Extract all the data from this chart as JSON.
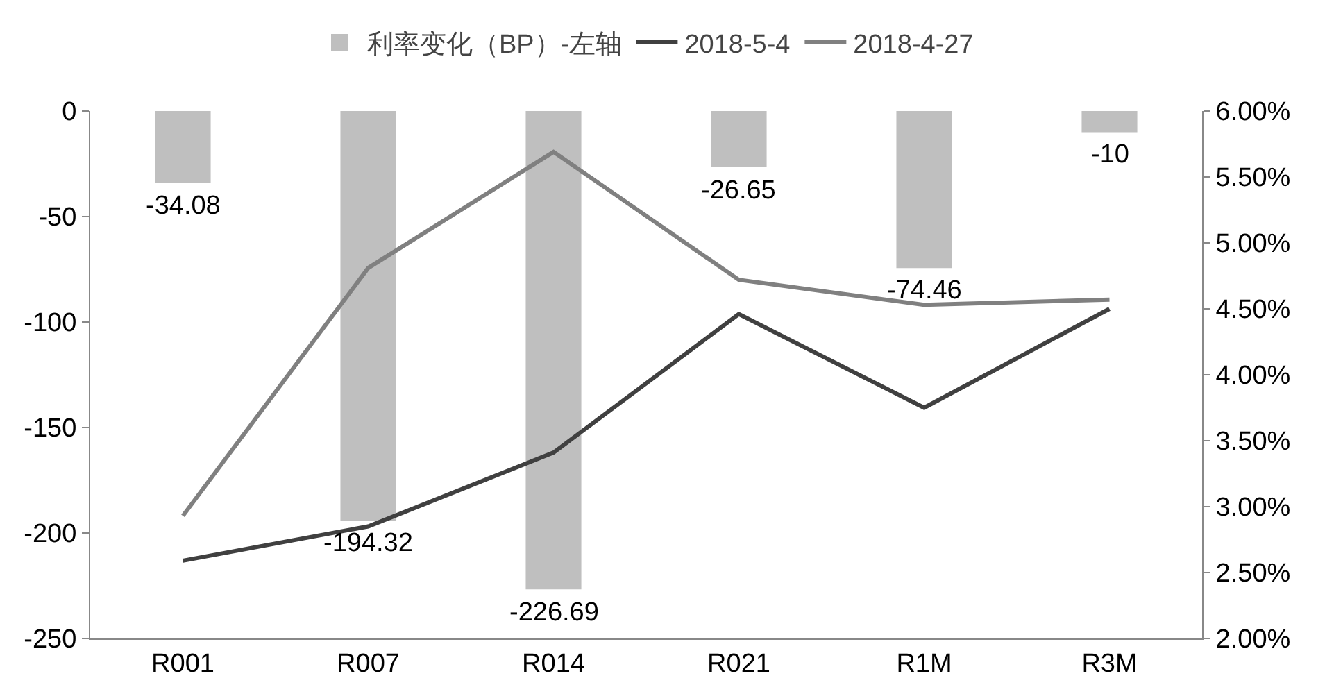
{
  "chart_data": {
    "type": "bar",
    "categories": [
      "R001",
      "R007",
      "R014",
      "R021",
      "R1M",
      "R3M"
    ],
    "series": [
      {
        "name": "利率变化（BP）-左轴",
        "color": "#bfbfbf",
        "values": [
          -34.08,
          -194.32,
          -226.69,
          -26.65,
          -74.46,
          -10
        ],
        "value_labels": [
          "-34.08",
          "-194.32",
          "-226.69",
          "-26.65",
          "-74.46",
          "-10"
        ]
      },
      {
        "name": "2018-5-4",
        "type": "line",
        "axis": "y2",
        "color": "#404040",
        "values": [
          2.59,
          2.85,
          3.41,
          4.46,
          3.75,
          4.5
        ]
      },
      {
        "name": "2018-4-27",
        "type": "line",
        "axis": "y2",
        "color": "#808080",
        "values": [
          2.93,
          4.81,
          5.69,
          4.72,
          4.53,
          4.57
        ]
      }
    ],
    "ylim": [
      -250,
      0
    ],
    "yticks": [
      -250,
      -200,
      -150,
      -100,
      -50,
      0
    ],
    "y2lim": [
      2,
      6
    ],
    "y2ticks": [
      {
        "value": 2,
        "label": "2.00%"
      },
      {
        "value": 2.5,
        "label": "2.50%"
      },
      {
        "value": 3,
        "label": "3.00%"
      },
      {
        "value": 3.5,
        "label": "3.50%"
      },
      {
        "value": 4,
        "label": "4.00%"
      },
      {
        "value": 4.5,
        "label": "4.50%"
      },
      {
        "value": 5,
        "label": "5.00%"
      },
      {
        "value": 5.5,
        "label": "5.50%"
      },
      {
        "value": 6,
        "label": "6.00%"
      }
    ],
    "grid": false,
    "legend": "top",
    "marker": "none",
    "line_style": "solid"
  }
}
